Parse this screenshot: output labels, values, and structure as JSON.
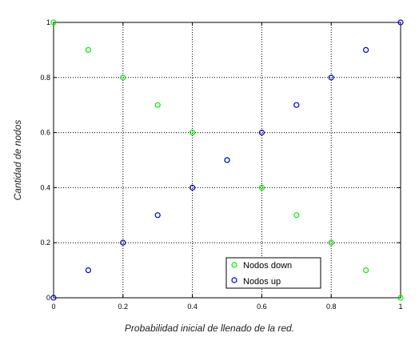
{
  "chart_data": {
    "type": "scatter",
    "title": "",
    "xlabel": "Probabilidad inicial de llenado de la red.",
    "ylabel": "Cantidad de nodos",
    "xlim": [
      0,
      1
    ],
    "ylim": [
      0,
      1
    ],
    "xticks": [
      "0",
      "0.2",
      "0.4",
      "0.6",
      "0.8",
      "1"
    ],
    "yticks": [
      "0",
      "0.2",
      "0.4",
      "0.6",
      "0.8",
      "1"
    ],
    "grid": true,
    "legend_position": "bottom-right",
    "series": [
      {
        "name": "Nodos down",
        "color": "#00ee00",
        "marker": "circle-open",
        "x": [
          0,
          0.1,
          0.2,
          0.3,
          0.4,
          0.5,
          0.6,
          0.7,
          0.8,
          0.9,
          1
        ],
        "y": [
          1,
          0.9,
          0.8,
          0.7,
          0.6,
          0.5,
          0.4,
          0.3,
          0.2,
          0.1,
          0
        ]
      },
      {
        "name": "Nodos up",
        "color": "#0000cc",
        "marker": "circle-open",
        "x": [
          0,
          0.1,
          0.2,
          0.3,
          0.4,
          0.5,
          0.6,
          0.7,
          0.8,
          0.9,
          1
        ],
        "y": [
          0,
          0.1,
          0.2,
          0.3,
          0.4,
          0.5,
          0.6,
          0.7,
          0.8,
          0.9,
          1
        ]
      }
    ]
  }
}
